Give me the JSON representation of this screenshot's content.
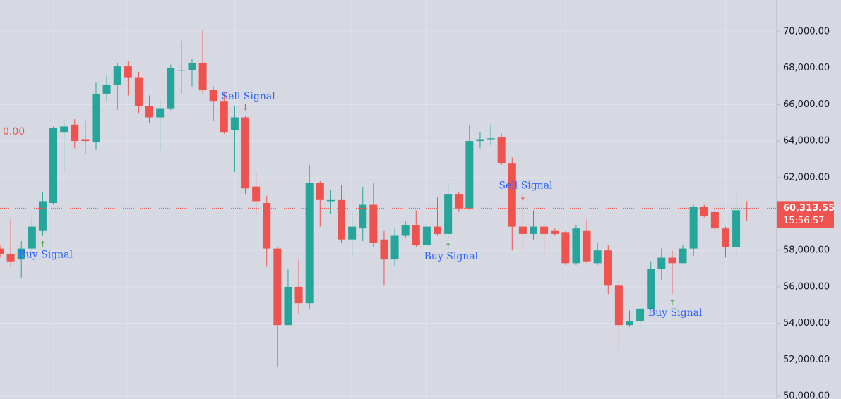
{
  "chart_data": {
    "type": "candlestick",
    "up_color": "#26a69a",
    "down_color": "#ef5350",
    "grid": true,
    "ylim": [
      49845,
      71741
    ],
    "yticks": [
      {
        "value": 50000,
        "label": "50,000.00"
      },
      {
        "value": 52000,
        "label": "52,000.00"
      },
      {
        "value": 54000,
        "label": "54,000.00"
      },
      {
        "value": 56000,
        "label": "56,000.00"
      },
      {
        "value": 58000,
        "label": "58,000.00"
      },
      {
        "value": 60000,
        "label": "60,000.00"
      },
      {
        "value": 62000,
        "label": "62,000.00"
      },
      {
        "value": 64000,
        "label": "64,000.00"
      },
      {
        "value": 66000,
        "label": "66,000.00"
      },
      {
        "value": 68000,
        "label": "68,000.00"
      },
      {
        "value": 70000,
        "label": "70,000.00"
      }
    ],
    "open": [
      58100,
      57800,
      57500,
      58100,
      59100,
      60600,
      64500,
      64900,
      64100,
      63950,
      66600,
      67100,
      68100,
      67500,
      65900,
      65300,
      65800,
      67900,
      67900,
      68300,
      66800,
      66200,
      64600,
      65300,
      61500,
      60600,
      58100,
      53900,
      56000,
      55100,
      61700,
      60700,
      60800,
      58600,
      59200,
      60500,
      58600,
      57500,
      58800,
      59400,
      58300,
      59300,
      58900,
      61100,
      60300,
      64000,
      64100,
      64200,
      62800,
      59300,
      58900,
      59300,
      59100,
      59000,
      57300,
      59100,
      57300,
      58000,
      56100,
      53900,
      54100,
      54800,
      57000,
      57600,
      57300,
      58100,
      60400,
      60100,
      59200,
      58200,
      60314
    ],
    "high": [
      58300,
      59700,
      58500,
      59800,
      61200,
      64800,
      65200,
      65200,
      65100,
      67200,
      67600,
      68300,
      68400,
      67800,
      66500,
      66200,
      68200,
      69500,
      68500,
      70100,
      67000,
      66700,
      65900,
      65400,
      62300,
      61000,
      58200,
      57000,
      57500,
      62700,
      61800,
      61300,
      61600,
      60100,
      61500,
      61700,
      59100,
      59200,
      59600,
      60200,
      59500,
      60900,
      61700,
      61200,
      64900,
      64500,
      64900,
      64400,
      63100,
      60500,
      60200,
      59500,
      59200,
      59100,
      59400,
      59700,
      58400,
      58300,
      56300,
      54700,
      54900,
      57400,
      58100,
      58000,
      58300,
      60500,
      60500,
      60300,
      59300,
      61300,
      60700
    ],
    "low": [
      57600,
      57100,
      56500,
      57900,
      58800,
      60500,
      62300,
      63600,
      63300,
      63500,
      66200,
      65700,
      66500,
      65500,
      65000,
      63500,
      65700,
      66600,
      67000,
      66600,
      65100,
      64400,
      62300,
      61100,
      60000,
      57100,
      51600,
      53900,
      54500,
      54800,
      59300,
      60000,
      58400,
      57700,
      58500,
      58200,
      56100,
      57100,
      58700,
      58200,
      58200,
      58800,
      58700,
      60100,
      60200,
      63600,
      63800,
      62700,
      58000,
      57900,
      58600,
      57800,
      58800,
      57200,
      57200,
      57300,
      57200,
      55600,
      52600,
      53800,
      53700,
      54700,
      56400,
      55600,
      57300,
      57700,
      59800,
      58900,
      57600,
      57700,
      59600
    ],
    "close": [
      57800,
      57400,
      58100,
      59300,
      60700,
      64700,
      64800,
      64000,
      64000,
      66600,
      67100,
      68100,
      67500,
      65900,
      65300,
      65800,
      68000,
      67900,
      68300,
      66800,
      66200,
      64500,
      65300,
      61400,
      60700,
      58100,
      53900,
      56000,
      55100,
      61700,
      60800,
      60800,
      58600,
      59300,
      60500,
      58400,
      57500,
      58800,
      59400,
      58300,
      59300,
      58900,
      61100,
      60300,
      64000,
      64100,
      64150,
      62800,
      59300,
      58900,
      59300,
      58900,
      58900,
      57300,
      59200,
      57400,
      58000,
      56100,
      53900,
      54100,
      54800,
      57000,
      57600,
      57300,
      58100,
      60400,
      59900,
      59200,
      58200,
      60200,
      60313.55
    ],
    "last_price": {
      "value": 60313.55,
      "label": "60,313.55"
    },
    "countdown": "15:56:57",
    "left_label": "0.00",
    "annotations": [
      {
        "text": "Buy Signal",
        "signal": "buy"
      },
      {
        "text": "Sell Signal",
        "signal": "sell"
      },
      {
        "text": "Buy Signal",
        "signal": "buy"
      },
      {
        "text": "Sell Signal",
        "signal": "sell"
      },
      {
        "text": "Buy Signal",
        "signal": "buy"
      }
    ]
  }
}
